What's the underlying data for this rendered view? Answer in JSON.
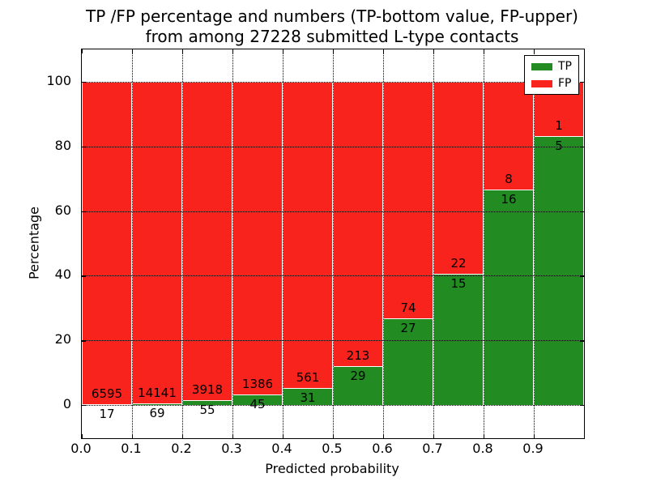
{
  "title": {
    "line1": "TP /FP percentage and numbers (TP-bottom value, FP-upper)",
    "line2": "from among 27228 submitted L-type contacts"
  },
  "axes": {
    "xlabel": "Predicted probability",
    "ylabel": "Percentage",
    "xticks": [
      "0.0",
      "0.1",
      "0.2",
      "0.3",
      "0.4",
      "0.5",
      "0.6",
      "0.7",
      "0.8",
      "0.9"
    ],
    "yticks": [
      "0",
      "20",
      "40",
      "60",
      "80",
      "100"
    ]
  },
  "legend": {
    "items": [
      {
        "label": "TP",
        "color": "#228b22"
      },
      {
        "label": "FP",
        "color": "#f8231c"
      }
    ]
  },
  "colors": {
    "tp": "#228b22",
    "fp": "#f8231c",
    "grid": "#000000",
    "bar_edge": "#ffffff",
    "background": "#ffffff"
  },
  "chart_data": {
    "type": "bar",
    "stacked": true,
    "percent_normalized": true,
    "title": "TP /FP percentage and numbers (TP-bottom value, FP-upper) from among 27228 submitted L-type contacts",
    "xlabel": "Predicted probability",
    "ylabel": "Percentage",
    "total_submitted": 27228,
    "xlim": [
      0.0,
      1.0
    ],
    "ylim": [
      -10.5,
      110
    ],
    "yticks": [
      0,
      20,
      40,
      60,
      80,
      100
    ],
    "grid": true,
    "legend_position": "upper right",
    "bin_width": 0.1,
    "bin_starts": [
      0.0,
      0.1,
      0.2,
      0.3,
      0.4,
      0.5,
      0.6,
      0.7,
      0.8,
      0.9
    ],
    "series": [
      {
        "name": "TP",
        "color": "#228b22",
        "values": [
          17,
          69,
          55,
          45,
          31,
          29,
          27,
          15,
          16,
          5
        ]
      },
      {
        "name": "FP",
        "color": "#f8231c",
        "values": [
          6595,
          14141,
          3918,
          1386,
          561,
          213,
          74,
          22,
          8,
          1
        ]
      }
    ],
    "bins": [
      {
        "range": [
          0.0,
          0.1
        ],
        "tp": 17,
        "fp": 6595
      },
      {
        "range": [
          0.1,
          0.2
        ],
        "tp": 69,
        "fp": 14141
      },
      {
        "range": [
          0.2,
          0.3
        ],
        "tp": 55,
        "fp": 3918
      },
      {
        "range": [
          0.3,
          0.4
        ],
        "tp": 45,
        "fp": 1386
      },
      {
        "range": [
          0.4,
          0.5
        ],
        "tp": 31,
        "fp": 561
      },
      {
        "range": [
          0.5,
          0.6
        ],
        "tp": 29,
        "fp": 213
      },
      {
        "range": [
          0.6,
          0.7
        ],
        "tp": 27,
        "fp": 74
      },
      {
        "range": [
          0.7,
          0.8
        ],
        "tp": 15,
        "fp": 22
      },
      {
        "range": [
          0.8,
          0.9
        ],
        "tp": 16,
        "fp": 8
      },
      {
        "range": [
          0.9,
          1.0
        ],
        "tp": 5,
        "fp": 1
      }
    ]
  }
}
